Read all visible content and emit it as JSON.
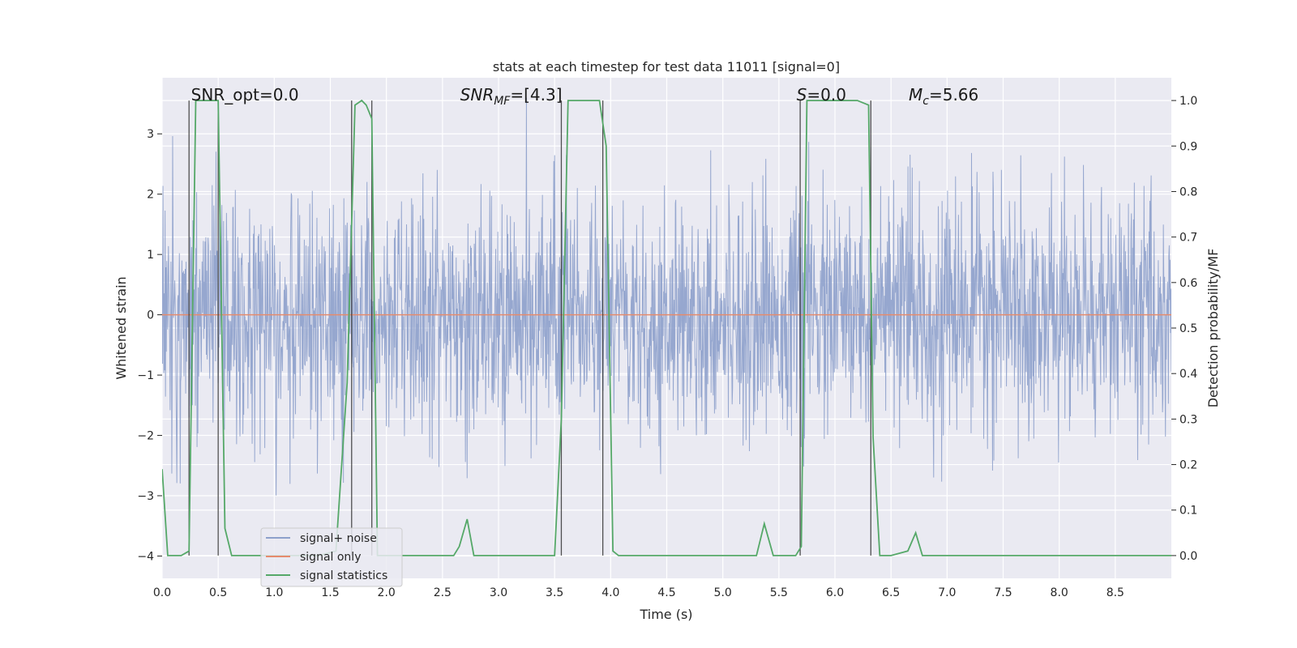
{
  "chart_data": {
    "type": "line",
    "title": "stats at each timestep for test data 11011 [signal=0]",
    "xlabel": "Time (s)",
    "ylabel_left": "Whitened strain",
    "ylabel_right": "Detection probability/MF",
    "xlim": [
      0,
      9.0
    ],
    "ylim_left": [
      -4.37,
      3.93
    ],
    "ylim_right": [
      -0.05,
      1.05
    ],
    "x_ticks": [
      "0.0",
      "0.5",
      "1.0",
      "1.5",
      "2.0",
      "2.5",
      "3.0",
      "3.5",
      "4.0",
      "4.5",
      "5.0",
      "5.5",
      "6.0",
      "6.5",
      "7.0",
      "7.5",
      "8.0",
      "8.5"
    ],
    "y_left_ticks": [
      "−4",
      "−3",
      "−2",
      "−1",
      "0",
      "1",
      "2",
      "3"
    ],
    "y_right_ticks": [
      "0.0",
      "0.1",
      "0.2",
      "0.3",
      "0.4",
      "0.5",
      "0.6",
      "0.7",
      "0.8",
      "0.9",
      "1.0"
    ],
    "grid": true,
    "legend_position": "lower-left",
    "annotations": [
      {
        "text": "SNR_opt=0.0",
        "x": 0.2
      },
      {
        "text": "SNR_MF=[4.3]",
        "x": 2.6
      },
      {
        "text": "S=0.0",
        "x": 5.6
      },
      {
        "text": "M_c=5.66",
        "x": 6.6
      }
    ],
    "vertical_markers": [
      0.24,
      0.5,
      1.69,
      1.87,
      3.56,
      3.93,
      5.69,
      6.32
    ],
    "series": [
      {
        "name": "signal+ noise",
        "axis": "left",
        "color": "#8da0cb",
        "noise_std": 0.95,
        "envelope_peak": 3.6,
        "envelope_trough": -3.8
      },
      {
        "name": "signal only",
        "axis": "left",
        "color": "#e58b6d",
        "x": [
          0.0,
          9.0
        ],
        "y": [
          0,
          0
        ]
      },
      {
        "name": "signal statistics",
        "axis": "right",
        "color": "#55a868",
        "x": [
          0.0,
          0.05,
          0.1,
          0.17,
          0.24,
          0.3,
          0.35,
          0.4,
          0.45,
          0.5,
          0.56,
          0.62,
          0.7,
          0.8,
          1.0,
          1.2,
          1.4,
          1.55,
          1.65,
          1.72,
          1.78,
          1.82,
          1.87,
          1.92,
          2.0,
          2.2,
          2.4,
          2.6,
          2.65,
          2.72,
          2.78,
          2.9,
          3.2,
          3.5,
          3.56,
          3.62,
          3.7,
          3.8,
          3.9,
          3.96,
          4.02,
          4.07,
          4.15,
          4.5,
          5.0,
          5.3,
          5.37,
          5.45,
          5.55,
          5.65,
          5.7,
          5.75,
          5.8,
          6.0,
          6.2,
          6.3,
          6.34,
          6.4,
          6.5,
          6.65,
          6.72,
          6.78,
          6.85,
          7.0,
          7.5,
          8.0,
          8.5,
          9.0
        ],
        "y": [
          0.19,
          0.0,
          0.0,
          0.0,
          0.01,
          1.0,
          1.0,
          1.0,
          1.0,
          1.0,
          0.06,
          0.0,
          0.0,
          0.0,
          0.0,
          0.0,
          0.0,
          0.01,
          0.38,
          0.99,
          1.0,
          0.99,
          0.96,
          0.0,
          0.0,
          0.0,
          0.0,
          0.0,
          0.02,
          0.08,
          0.0,
          0.0,
          0.0,
          0.0,
          0.3,
          1.0,
          1.0,
          1.0,
          1.0,
          0.9,
          0.01,
          0.0,
          0.0,
          0.0,
          0.0,
          0.0,
          0.07,
          0.0,
          0.0,
          0.0,
          0.02,
          1.0,
          1.0,
          1.0,
          1.0,
          0.99,
          0.26,
          0.0,
          0.0,
          0.01,
          0.05,
          0.0,
          0.0,
          0.0,
          0.0,
          0.0,
          0.0,
          0.0
        ]
      }
    ]
  }
}
